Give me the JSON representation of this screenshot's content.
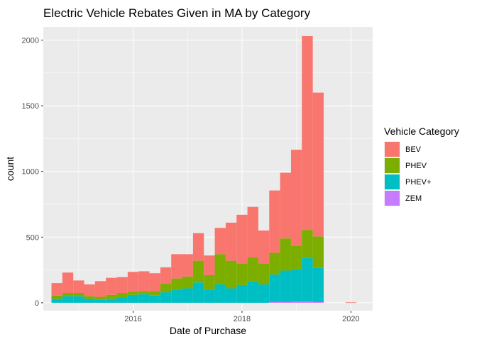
{
  "chart_data": {
    "type": "bar",
    "subtype": "stacked-histogram",
    "title": "Electric Vehicle Rebates Given in MA by Category",
    "xlabel": "Date of Purchase",
    "ylabel": "count",
    "xlim": [
      2014.35,
      2020.4
    ],
    "ylim": [
      -60,
      2100
    ],
    "xticks": [
      2016,
      2018,
      2020
    ],
    "yticks": [
      0,
      500,
      1000,
      1500,
      2000
    ],
    "grid": true,
    "legend": {
      "title": "Vehicle Category",
      "placement": "right"
    },
    "bin_width_years": 0.2,
    "series": [
      {
        "name": "BEV",
        "color": "#F8766D"
      },
      {
        "name": "PHEV",
        "color": "#7CAE00"
      },
      {
        "name": "PHEV+",
        "color": "#00BFC4"
      },
      {
        "name": "ZEM",
        "color": "#C77CFF"
      }
    ],
    "bins": [
      {
        "start": 2014.5,
        "ZEM": 0,
        "PHEV+": 30,
        "PHEV": 25,
        "BEV": 95
      },
      {
        "start": 2014.7,
        "ZEM": 0,
        "PHEV+": 50,
        "PHEV": 25,
        "BEV": 155
      },
      {
        "start": 2014.9,
        "ZEM": 0,
        "PHEV+": 50,
        "PHEV": 25,
        "BEV": 95
      },
      {
        "start": 2015.1,
        "ZEM": 0,
        "PHEV+": 30,
        "PHEV": 20,
        "BEV": 90
      },
      {
        "start": 2015.3,
        "ZEM": 0,
        "PHEV+": 25,
        "PHEV": 20,
        "BEV": 120
      },
      {
        "start": 2015.5,
        "ZEM": 0,
        "PHEV+": 30,
        "PHEV": 30,
        "BEV": 130
      },
      {
        "start": 2015.7,
        "ZEM": 0,
        "PHEV+": 40,
        "PHEV": 35,
        "BEV": 120
      },
      {
        "start": 2015.9,
        "ZEM": 0,
        "PHEV+": 60,
        "PHEV": 25,
        "BEV": 150
      },
      {
        "start": 2016.1,
        "ZEM": 0,
        "PHEV+": 65,
        "PHEV": 25,
        "BEV": 150
      },
      {
        "start": 2016.3,
        "ZEM": 0,
        "PHEV+": 55,
        "PHEV": 35,
        "BEV": 135
      },
      {
        "start": 2016.5,
        "ZEM": 0,
        "PHEV+": 80,
        "PHEV": 65,
        "BEV": 125
      },
      {
        "start": 2016.7,
        "ZEM": 0,
        "PHEV+": 100,
        "PHEV": 85,
        "BEV": 185
      },
      {
        "start": 2016.9,
        "ZEM": 0,
        "PHEV+": 110,
        "PHEV": 90,
        "BEV": 170
      },
      {
        "start": 2017.1,
        "ZEM": 0,
        "PHEV+": 155,
        "PHEV": 165,
        "BEV": 210
      },
      {
        "start": 2017.3,
        "ZEM": 0,
        "PHEV+": 100,
        "PHEV": 110,
        "BEV": 150
      },
      {
        "start": 2017.5,
        "ZEM": 0,
        "PHEV+": 140,
        "PHEV": 230,
        "BEV": 200
      },
      {
        "start": 2017.7,
        "ZEM": 0,
        "PHEV+": 110,
        "PHEV": 210,
        "BEV": 290
      },
      {
        "start": 2017.9,
        "ZEM": 0,
        "PHEV+": 135,
        "PHEV": 165,
        "BEV": 370
      },
      {
        "start": 2018.1,
        "ZEM": 0,
        "PHEV+": 165,
        "PHEV": 180,
        "BEV": 385
      },
      {
        "start": 2018.3,
        "ZEM": 0,
        "PHEV+": 140,
        "PHEV": 160,
        "BEV": 250
      },
      {
        "start": 2018.5,
        "ZEM": 5,
        "PHEV+": 210,
        "PHEV": 165,
        "BEV": 475
      },
      {
        "start": 2018.7,
        "ZEM": 5,
        "PHEV+": 240,
        "PHEV": 245,
        "BEV": 500
      },
      {
        "start": 2018.9,
        "ZEM": 10,
        "PHEV+": 245,
        "PHEV": 180,
        "BEV": 730
      },
      {
        "start": 2019.1,
        "ZEM": 10,
        "PHEV+": 330,
        "PHEV": 215,
        "BEV": 1475
      },
      {
        "start": 2019.3,
        "ZEM": 5,
        "PHEV+": 260,
        "PHEV": 240,
        "BEV": 1095
      },
      {
        "start": 2019.9,
        "ZEM": 0,
        "PHEV+": 0,
        "PHEV": 0,
        "BEV": 3
      }
    ]
  }
}
